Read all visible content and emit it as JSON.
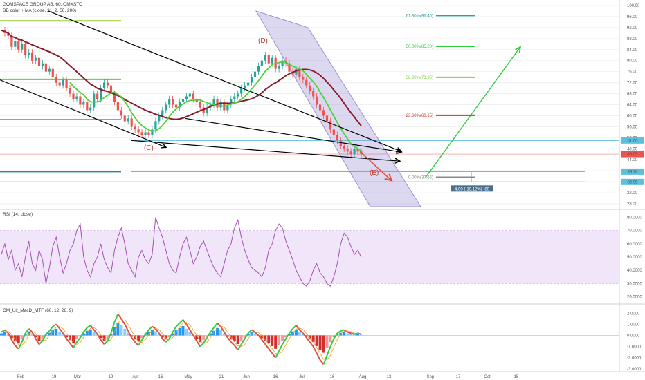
{
  "legend": {
    "main": "GOMSPACE GROUP AB, 60, OMXSTO",
    "bb": "BB color + MA (close, 21, 2, 50, 200)",
    "rsi": "RSI (14, close)",
    "macd": "CM_Ult_MacD_MTF (60, 12, 26, 9)"
  },
  "colors": {
    "candle_up": "#26a69a",
    "candle_down": "#ef5350",
    "ma_slow": "#8b1a2b",
    "ma_fast": "#4cd137",
    "channel": "#9c8fd0",
    "rsi_line": "#a54fb4",
    "rsi_band": "#e7d4f5",
    "price_tag": "#ef5350",
    "support": "#5bc0de"
  },
  "waves": [
    "(C)",
    "(D)",
    "(E)"
  ],
  "measure_label": "-4.00 (-10.12%) -80",
  "current_price": "46.05",
  "chart_data": [
    {
      "type": "line",
      "pane": "price",
      "title": "GOMSPACE GROUP AB, 60, OMXSTO",
      "x_ticks": [
        "Feb",
        "19",
        "Mar",
        "19",
        "Apr",
        "16",
        "May",
        "21",
        "Jun",
        "16",
        "Jul",
        "16",
        "Aug",
        "13",
        "Sep",
        "17",
        "Oct",
        "15"
      ],
      "ylim": [
        26,
        102
      ],
      "y_ticks": [
        28.0,
        32.0,
        36.0,
        40.0,
        44.0,
        48.0,
        52.0,
        56.0,
        60.0,
        64.0,
        68.0,
        72.0,
        76.0,
        80.0,
        84.0,
        88.0,
        92.0,
        96.0,
        100.0
      ],
      "y_tags": [
        {
          "value": 51.0,
          "label": "51.00",
          "color": "#5bc0de"
        },
        {
          "value": 46.05,
          "label": "46.05",
          "color": "#ef5350"
        },
        {
          "value": 39.7,
          "label": "39.70",
          "color": "#5bc0de"
        },
        {
          "value": 35.95,
          "label": "35.95",
          "color": "#5bc0de"
        }
      ],
      "close_series": [
        91,
        90,
        89,
        85,
        87,
        84,
        86,
        82,
        83,
        80,
        81,
        78,
        79,
        76,
        77,
        74,
        72,
        71,
        73,
        70,
        68,
        66,
        67,
        64,
        65,
        62,
        63,
        68,
        66,
        70,
        72,
        71,
        68,
        65,
        62,
        60,
        58,
        59,
        56,
        55,
        54,
        53,
        54,
        53,
        55,
        58,
        60,
        62,
        64,
        66,
        64,
        63,
        65,
        66,
        67,
        68,
        66,
        65,
        63,
        61,
        63,
        64,
        66,
        63,
        65,
        62,
        64,
        66,
        67,
        68,
        70,
        71,
        72,
        74,
        76,
        78,
        80,
        82,
        79,
        81,
        77,
        78,
        80,
        79,
        76,
        75,
        77,
        74,
        73,
        71,
        69,
        67,
        64,
        62,
        60,
        58,
        55,
        53,
        51,
        49,
        48,
        47,
        46,
        48,
        47,
        46
      ],
      "fibonacci": [
        {
          "label": "61.80%(96.40)",
          "value": 96.4,
          "color": "#26a69a"
        },
        {
          "label": "50.00%(85.20)",
          "value": 85.2,
          "color": "#2ecc40"
        },
        {
          "label": "38.20%(73.95)",
          "value": 73.95,
          "color": "#7dcf3f"
        },
        {
          "label": "23.60%(60.15)",
          "value": 60.15,
          "color": "#c0392b"
        },
        {
          "label": "0.00%(37.65)",
          "value": 37.65,
          "color": "#888888"
        }
      ]
    },
    {
      "type": "line",
      "pane": "rsi",
      "title": "RSI (14, close)",
      "ylim": [
        15,
        85
      ],
      "y_ticks": [
        20.0,
        30.0,
        40.0,
        50.0,
        60.0,
        70.0,
        80.0
      ],
      "band": [
        30,
        70
      ],
      "values": [
        52,
        60,
        48,
        55,
        40,
        45,
        35,
        50,
        62,
        45,
        40,
        55,
        48,
        30,
        42,
        58,
        65,
        50,
        38,
        45,
        55,
        60,
        70,
        75,
        50,
        40,
        35,
        45,
        50,
        60,
        48,
        42,
        38,
        55,
        65,
        72,
        60,
        45,
        40,
        35,
        50,
        55,
        48,
        45,
        52,
        80,
        72,
        65,
        55,
        45,
        40,
        38,
        50,
        60,
        65,
        55,
        45,
        50,
        58,
        62,
        55,
        48,
        42,
        38,
        35,
        45,
        55,
        60,
        72,
        78,
        65,
        55,
        48,
        42,
        40,
        38,
        35,
        42,
        55,
        60,
        70,
        75,
        72,
        62,
        55,
        48,
        40,
        35,
        30,
        28,
        32,
        40,
        45,
        38,
        35,
        30,
        28,
        35,
        45,
        60,
        68,
        65,
        58,
        52,
        55,
        50
      ]
    },
    {
      "type": "bar",
      "pane": "macd",
      "title": "CM_Ult_MacD_MTF (60, 12, 26, 9)",
      "ylim": [
        -3.2,
        2.7
      ],
      "y_ticks": [
        -3.0,
        -2.0,
        -1.0,
        0.0,
        1.0,
        2.0
      ],
      "values": [
        0.3,
        0.5,
        0.2,
        -0.4,
        -0.9,
        -1.2,
        -0.6,
        0.2,
        0.6,
        0.3,
        -0.3,
        -0.8,
        -0.5,
        0.1,
        0.4,
        0.8,
        1.0,
        0.6,
        0.2,
        -0.3,
        -0.7,
        -1.1,
        -0.6,
        -0.2,
        0.3,
        0.7,
        0.9,
        0.5,
        0.1,
        -0.4,
        -0.8,
        -0.5,
        0.2,
        1.2,
        1.9,
        1.5,
        1.0,
        0.4,
        -0.2,
        -0.6,
        -0.9,
        -0.4,
        0.1,
        0.5,
        0.8,
        0.6,
        0.2,
        -0.3,
        -0.6,
        -0.3,
        0.3,
        0.8,
        1.1,
        1.4,
        1.0,
        0.5,
        0.0,
        -0.5,
        -1.0,
        -0.7,
        -0.2,
        0.3,
        0.7,
        1.1,
        0.8,
        0.3,
        -0.2,
        -0.6,
        -0.9,
        -1.3,
        -0.8,
        -0.3,
        0.2,
        0.5,
        0.3,
        0.0,
        -0.4,
        -0.8,
        -1.2,
        -1.6,
        -2.0,
        -1.4,
        -0.8,
        -0.3,
        0.2,
        0.6,
        0.9,
        0.5,
        0.2,
        -0.2,
        -0.6,
        -1.0,
        -1.6,
        -2.2,
        -2.6,
        -1.8,
        -1.0,
        -0.3,
        0.2,
        0.4,
        0.5,
        0.3,
        0.2,
        0.1,
        0.2,
        0.1
      ]
    }
  ]
}
